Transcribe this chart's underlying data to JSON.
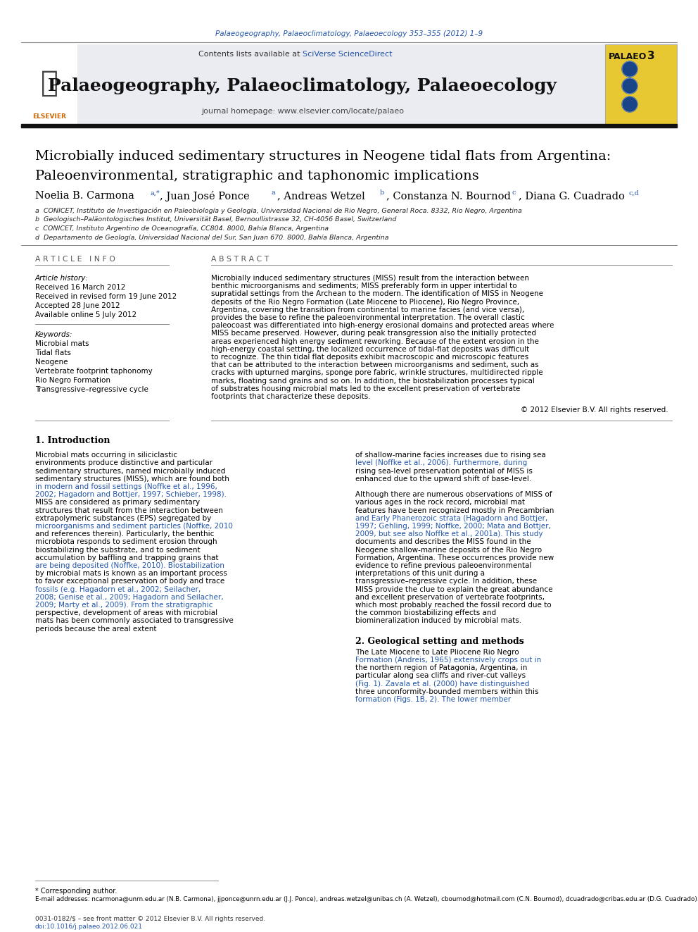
{
  "page_bg": "#ffffff",
  "top_journal_ref": "Palaeogeography, Palaeoclimatology, Palaeoecology 353–355 (2012) 1–9",
  "top_journal_ref_color": "#2255aa",
  "journal_title": "Palaeogeography, Palaeoclimatology, Palaeoecology",
  "palaeo_badge_bg": "#e8c832",
  "article_title_line1": "Microbially induced sedimentary structures in Neogene tidal flats from Argentina:",
  "article_title_line2": "Paleoenvironmental, stratigraphic and taphonomic implications",
  "affil_a": "a  CONICET, Instituto de Investigación en Paleobiología y Geología, Universidad Nacional de Rio Negro, General Roca. 8332, Rio Negro, Argentina",
  "affil_b": "b  Geologisch–Paläontologisches Institut, Universität Basel, Bernoullistrasse 32, CH-4056 Basel, Switzerland",
  "affil_c": "c  CONICET, Instituto Argentino de Oceanografía, CC804. 8000, Bahía Blanca, Argentina",
  "affil_d": "d  Departamento de Geología, Universidad Nacional del Sur, San Juan 670. 8000, Bahía Blanca, Argentina",
  "article_info_header": "A R T I C L E   I N F O",
  "abstract_header": "A B S T R A C T",
  "article_history_label": "Article history:",
  "received": "Received 16 March 2012",
  "revised": "Received in revised form 19 June 2012",
  "accepted": "Accepted 28 June 2012",
  "online": "Available online 5 July 2012",
  "keywords_label": "Keywords:",
  "keywords": [
    "Microbial mats",
    "Tidal flats",
    "Neogene",
    "Vertebrate footprint taphonomy",
    "Rio Negro Formation",
    "Transgressive–regressive cycle"
  ],
  "abstract_text": "Microbially induced sedimentary structures (MISS) result from the interaction between benthic microorganisms and sediments; MISS preferably form in upper intertidal to supratidal settings from the Archean to the modern. The identification of MISS in Neogene deposits of the Rio Negro Formation (Late Miocene to Pliocene), Rio Negro Province, Argentina, covering the transition from continental to marine facies (and vice versa), provides the base to refine the paleoenvironmental interpretation. The overall clastic paleocoast was differentiated into high-energy erosional domains and protected areas where MISS became preserved. However, during peak transgression also the initially protected areas experienced high energy sediment reworking. Because of the extent erosion in the high-energy coastal setting, the localized occurrence of tidal-flat deposits was difficult to recognize. The thin tidal flat deposits exhibit macroscopic and microscopic features that can be attributed to the interaction between microorganisms and sediment, such as cracks with upturned margins, sponge pore fabric, wrinkle structures, multidirected ripple marks, floating sand grains and so on. In addition, the biostabilization processes typical of substrates housing microbial mats led to the excellent preservation of vertebrate footprints that characterize these deposits.",
  "copyright": "© 2012 Elsevier B.V. All rights reserved.",
  "section1_title": "1. Introduction",
  "intro_text_col1": "   Microbial mats occurring in siliciclastic environments produce distinctive and particular sedimentary structures, named microbially induced sedimentary structures (MISS), which are found both in modern and fossil settings (Noffke et al., 1996, 2002; Hagadorn and Bottjer, 1997; Schieber, 1998). MISS are considered as primary sedimentary structures that result from the interaction between extrapolymeric substances (EPS) segregated by microorganisms and sediment particles (Noffke, 2010 and references therein). Particularly, the benthic microbiota responds to sediment erosion through biostabilizing the substrate, and to sediment accumulation by baffling and trapping grains that are being deposited (Noffke, 2010). Biostabilization by microbial mats is known as an important process to favor exceptional preservation of body and trace fossils (e.g. Hagadorn et al., 2002; Seilacher, 2008; Genise et al., 2009; Hagadorn and Seilacher, 2009; Marty et al., 2009). From the stratigraphic perspective, development of areas with microbial mats has been commonly associated to transgressive periods because the areal extent",
  "intro_text_col2": "of shallow-marine facies increases due to rising sea level (Noffke et al., 2006). Furthermore, during rising sea-level preservation potential of MISS is enhanced due to the upward shift of base-level.\n\n   Although there are numerous observations of MISS of various ages in the rock record, microbial mat features have been recognized mostly in Precambrian and Early Phanerozoic strata (Hagadorn and Bottjer, 1997; Gehling, 1999; Noffke, 2000; Mata and Bottjer, 2009, but see also Noffke et al., 2001a). This study documents and describes the MISS found in the Neogene shallow-marine deposits of the Rio Negro Formation, Argentina. These occurrences provide new evidence to refine previous paleoenvironmental interpretations of this unit during a transgressive–regressive cycle. In addition, these MISS provide the clue to explain the great abundance and excellent preservation of vertebrate footprints, which most probably reached the fossil record due to the common biostabilizing effects and biomineralization induced by microbial mats.",
  "section2_title": "2. Geological setting and methods",
  "section2_text": "   The Late Miocene to Late Pliocene Rio Negro Formation (Andreis, 1965) extensively crops out in the northern region of Patagonia, Argentina, in particular along sea cliffs and river-cut valleys (Fig. 1). Zavala et al. (2000) have distinguished three unconformity-bounded members within this formation (Figs. 1B, 2). The lower member",
  "link_color": "#2255aa",
  "footnote_star": "* Corresponding author.",
  "footnote_email": "E-mail addresses: ncarmona@unrn.edu.ar (N.B. Carmona), jjponce@unrn.edu.ar (J.J. Ponce), andreas.wetzel@unibas.ch (A. Wetzel), cbournod@hotmail.com (C.N. Bournod), dcuadrado@cribas.edu.ar (D.G. Cuadrado).",
  "bottom_line1": "0031-0182/$ – see front matter © 2012 Elsevier B.V. All rights reserved.",
  "bottom_line2": "doi:10.1016/j.palaeo.2012.06.021"
}
